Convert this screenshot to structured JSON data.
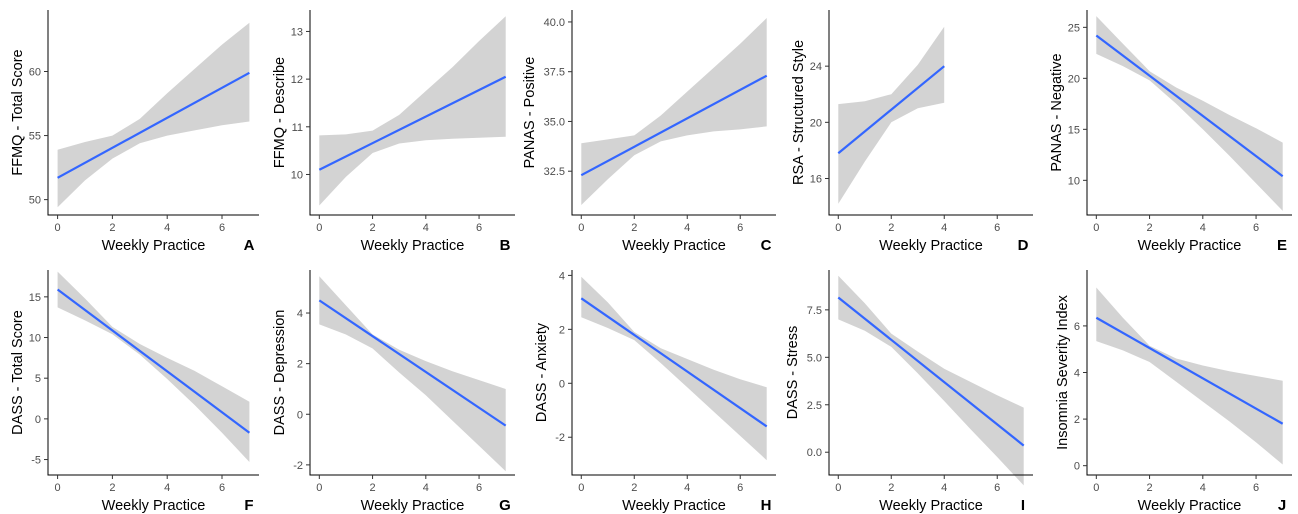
{
  "colors": {
    "line": "#3366ff",
    "ribbon": "#d3d3d3",
    "axis": "#000000",
    "tick_text": "#4d4d4d",
    "background": "#ffffff"
  },
  "chart_data": [
    {
      "type": "line",
      "panel_label": "A",
      "xlabel": "Weekly Practice",
      "ylabel": "FFMQ - Total Score",
      "xlim": [
        -0.35,
        7.35
      ],
      "ylim": [
        48.8,
        64.8
      ],
      "xticks": [
        0,
        2,
        4,
        6
      ],
      "yticks": [
        50,
        55,
        60
      ],
      "ytick_labels": [
        "50",
        "55",
        "60"
      ],
      "fit": {
        "x": [
          0,
          7
        ],
        "y": [
          51.7,
          59.9
        ]
      },
      "ci": {
        "x": [
          0,
          1,
          2,
          3,
          4,
          5,
          6,
          7
        ],
        "lower": [
          49.4,
          51.5,
          53.2,
          54.4,
          55.0,
          55.4,
          55.8,
          56.1
        ],
        "upper": [
          53.9,
          54.5,
          55.0,
          56.3,
          58.3,
          60.2,
          62.1,
          63.8
        ]
      }
    },
    {
      "type": "line",
      "panel_label": "B",
      "xlabel": "Weekly Practice",
      "ylabel": "FFMQ - Describe",
      "xlim": [
        -0.35,
        7.35
      ],
      "ylim": [
        9.15,
        13.45
      ],
      "xticks": [
        0,
        2,
        4,
        6
      ],
      "yticks": [
        10,
        11,
        12,
        13
      ],
      "ytick_labels": [
        "10",
        "11",
        "12",
        "13"
      ],
      "fit": {
        "x": [
          0,
          7
        ],
        "y": [
          10.1,
          12.05
        ]
      },
      "ci": {
        "x": [
          0,
          1,
          2,
          3,
          4,
          5,
          6,
          7
        ],
        "lower": [
          9.35,
          9.95,
          10.45,
          10.65,
          10.72,
          10.75,
          10.77,
          10.79
        ],
        "upper": [
          10.82,
          10.84,
          10.92,
          11.25,
          11.75,
          12.25,
          12.8,
          13.32
        ]
      }
    },
    {
      "type": "line",
      "panel_label": "C",
      "xlabel": "Weekly Practice",
      "ylabel": "PANAS - Positive",
      "xlim": [
        -0.35,
        7.35
      ],
      "ylim": [
        30.3,
        40.6
      ],
      "xticks": [
        0,
        2,
        4,
        6
      ],
      "yticks": [
        32.5,
        35.0,
        37.5,
        40.0
      ],
      "ytick_labels": [
        "32.5",
        "35.0",
        "37.5",
        "40.0"
      ],
      "fit": {
        "x": [
          0,
          7
        ],
        "y": [
          32.3,
          37.3
        ]
      },
      "ci": {
        "x": [
          0,
          1,
          2,
          3,
          4,
          5,
          6,
          7
        ],
        "lower": [
          30.8,
          32.1,
          33.3,
          34.0,
          34.3,
          34.5,
          34.6,
          34.75
        ],
        "upper": [
          33.9,
          34.1,
          34.3,
          35.3,
          36.5,
          37.7,
          38.9,
          40.2
        ]
      }
    },
    {
      "type": "line",
      "panel_label": "D",
      "xlabel": "Weekly Practice",
      "ylabel": "RSA - Structured Style",
      "xlim": [
        -0.35,
        7.35
      ],
      "ylim": [
        13.4,
        28.0
      ],
      "xticks": [
        0,
        2,
        4,
        6
      ],
      "yticks": [
        16,
        20,
        24
      ],
      "ytick_labels": [
        "16",
        "20",
        "24"
      ],
      "fit": {
        "x": [
          0,
          4
        ],
        "y": [
          17.8,
          24.0
        ]
      },
      "ci": {
        "x": [
          0,
          1,
          2,
          3,
          4
        ],
        "lower": [
          14.2,
          17.2,
          20.0,
          21.0,
          21.4
        ],
        "upper": [
          21.3,
          21.5,
          22.0,
          24.1,
          26.8
        ]
      }
    },
    {
      "type": "line",
      "panel_label": "E",
      "xlabel": "Weekly Practice",
      "ylabel": "PANAS - Negative",
      "xlim": [
        -0.35,
        7.35
      ],
      "ylim": [
        6.6,
        26.7
      ],
      "xticks": [
        0,
        2,
        4,
        6
      ],
      "yticks": [
        10,
        15,
        20,
        25
      ],
      "ytick_labels": [
        "10",
        "15",
        "20",
        "25"
      ],
      "fit": {
        "x": [
          0,
          7
        ],
        "y": [
          24.2,
          10.4
        ]
      },
      "ci": {
        "x": [
          0,
          1,
          2,
          3,
          4,
          5,
          6,
          7
        ],
        "lower": [
          22.4,
          21.2,
          19.8,
          17.5,
          15.0,
          12.4,
          9.7,
          7.0
        ],
        "upper": [
          26.1,
          23.4,
          20.7,
          19.1,
          17.8,
          16.4,
          15.1,
          13.7
        ]
      }
    },
    {
      "type": "line",
      "panel_label": "F",
      "xlabel": "Weekly Practice",
      "ylabel": "DASS - Total Score",
      "xlim": [
        -0.35,
        7.35
      ],
      "ylim": [
        -6.9,
        18.3
      ],
      "xticks": [
        0,
        2,
        4,
        6
      ],
      "yticks": [
        -5,
        0,
        5,
        10,
        15
      ],
      "ytick_labels": [
        "-5",
        "0",
        "5",
        "10",
        "15"
      ],
      "fit": {
        "x": [
          0,
          7
        ],
        "y": [
          15.9,
          -1.7
        ]
      },
      "ci": {
        "x": [
          0,
          1,
          2,
          3,
          4,
          5,
          6,
          7
        ],
        "lower": [
          13.7,
          12.1,
          10.4,
          7.9,
          4.9,
          1.7,
          -1.7,
          -5.3
        ],
        "upper": [
          18.1,
          14.8,
          11.3,
          9.2,
          7.5,
          5.9,
          4.0,
          2.1
        ]
      }
    },
    {
      "type": "line",
      "panel_label": "G",
      "xlabel": "Weekly Practice",
      "ylabel": "DASS - Depression",
      "xlim": [
        -0.35,
        7.35
      ],
      "ylim": [
        -2.4,
        5.7
      ],
      "xticks": [
        0,
        2,
        4,
        6
      ],
      "yticks": [
        -2,
        0,
        2,
        4
      ],
      "ytick_labels": [
        "-2",
        "0",
        "2",
        "4"
      ],
      "fit": {
        "x": [
          0,
          7
        ],
        "y": [
          4.5,
          -0.45
        ]
      },
      "ci": {
        "x": [
          0,
          1,
          2,
          3,
          4,
          5,
          6,
          7
        ],
        "lower": [
          3.55,
          3.15,
          2.6,
          1.65,
          0.75,
          -0.25,
          -1.25,
          -2.25
        ],
        "upper": [
          5.45,
          4.3,
          3.15,
          2.55,
          2.1,
          1.7,
          1.35,
          1.0
        ]
      }
    },
    {
      "type": "line",
      "panel_label": "H",
      "xlabel": "Weekly Practice",
      "ylabel": "DASS - Anxiety",
      "xlim": [
        -0.35,
        7.35
      ],
      "ylim": [
        -3.4,
        4.2
      ],
      "xticks": [
        0,
        2,
        4,
        6
      ],
      "yticks": [
        -2,
        0,
        2,
        4
      ],
      "ytick_labels": [
        "-2",
        "0",
        "2",
        "4"
      ],
      "fit": {
        "x": [
          0,
          7
        ],
        "y": [
          3.15,
          -1.6
        ]
      },
      "ci": {
        "x": [
          0,
          1,
          2,
          3,
          4,
          5,
          6,
          7
        ],
        "lower": [
          2.45,
          2.05,
          1.6,
          0.75,
          -0.15,
          -1.05,
          -1.95,
          -2.85
        ],
        "upper": [
          3.95,
          3.0,
          1.9,
          1.3,
          0.9,
          0.5,
          0.15,
          -0.15
        ]
      }
    },
    {
      "type": "line",
      "panel_label": "I",
      "xlabel": "Weekly Practice",
      "ylabel": "DASS - Stress",
      "xlim": [
        -0.35,
        7.35
      ],
      "ylim": [
        -1.2,
        9.6
      ],
      "xticks": [
        0,
        2,
        4,
        6
      ],
      "yticks": [
        0.0,
        2.5,
        5.0,
        7.5
      ],
      "ytick_labels": [
        "0.0",
        "2.5",
        "5.0",
        "7.5"
      ],
      "fit": {
        "x": [
          0,
          7
        ],
        "y": [
          8.15,
          0.35
        ]
      },
      "ci": {
        "x": [
          0,
          1,
          2,
          3,
          4,
          5,
          6,
          7
        ],
        "lower": [
          7.0,
          6.4,
          5.55,
          4.15,
          2.7,
          1.2,
          -0.25,
          -1.75
        ],
        "upper": [
          9.3,
          7.85,
          6.25,
          5.3,
          4.4,
          3.7,
          3.0,
          2.35
        ]
      }
    },
    {
      "type": "line",
      "panel_label": "J",
      "xlabel": "Weekly Practice",
      "ylabel": "Insomnia Severity Index",
      "xlim": [
        -0.35,
        7.35
      ],
      "ylim": [
        -0.4,
        8.4
      ],
      "xticks": [
        0,
        2,
        4,
        6
      ],
      "yticks": [
        0,
        2,
        4,
        6
      ],
      "ytick_labels": [
        "0",
        "2",
        "4",
        "6"
      ],
      "fit": {
        "x": [
          0,
          7
        ],
        "y": [
          6.35,
          1.8
        ]
      },
      "ci": {
        "x": [
          0,
          1,
          2,
          3,
          4,
          5,
          6,
          7
        ],
        "lower": [
          5.35,
          4.95,
          4.45,
          3.6,
          2.75,
          1.9,
          1.0,
          0.05
        ],
        "upper": [
          7.65,
          6.35,
          5.15,
          4.6,
          4.3,
          4.05,
          3.85,
          3.65
        ]
      }
    }
  ]
}
